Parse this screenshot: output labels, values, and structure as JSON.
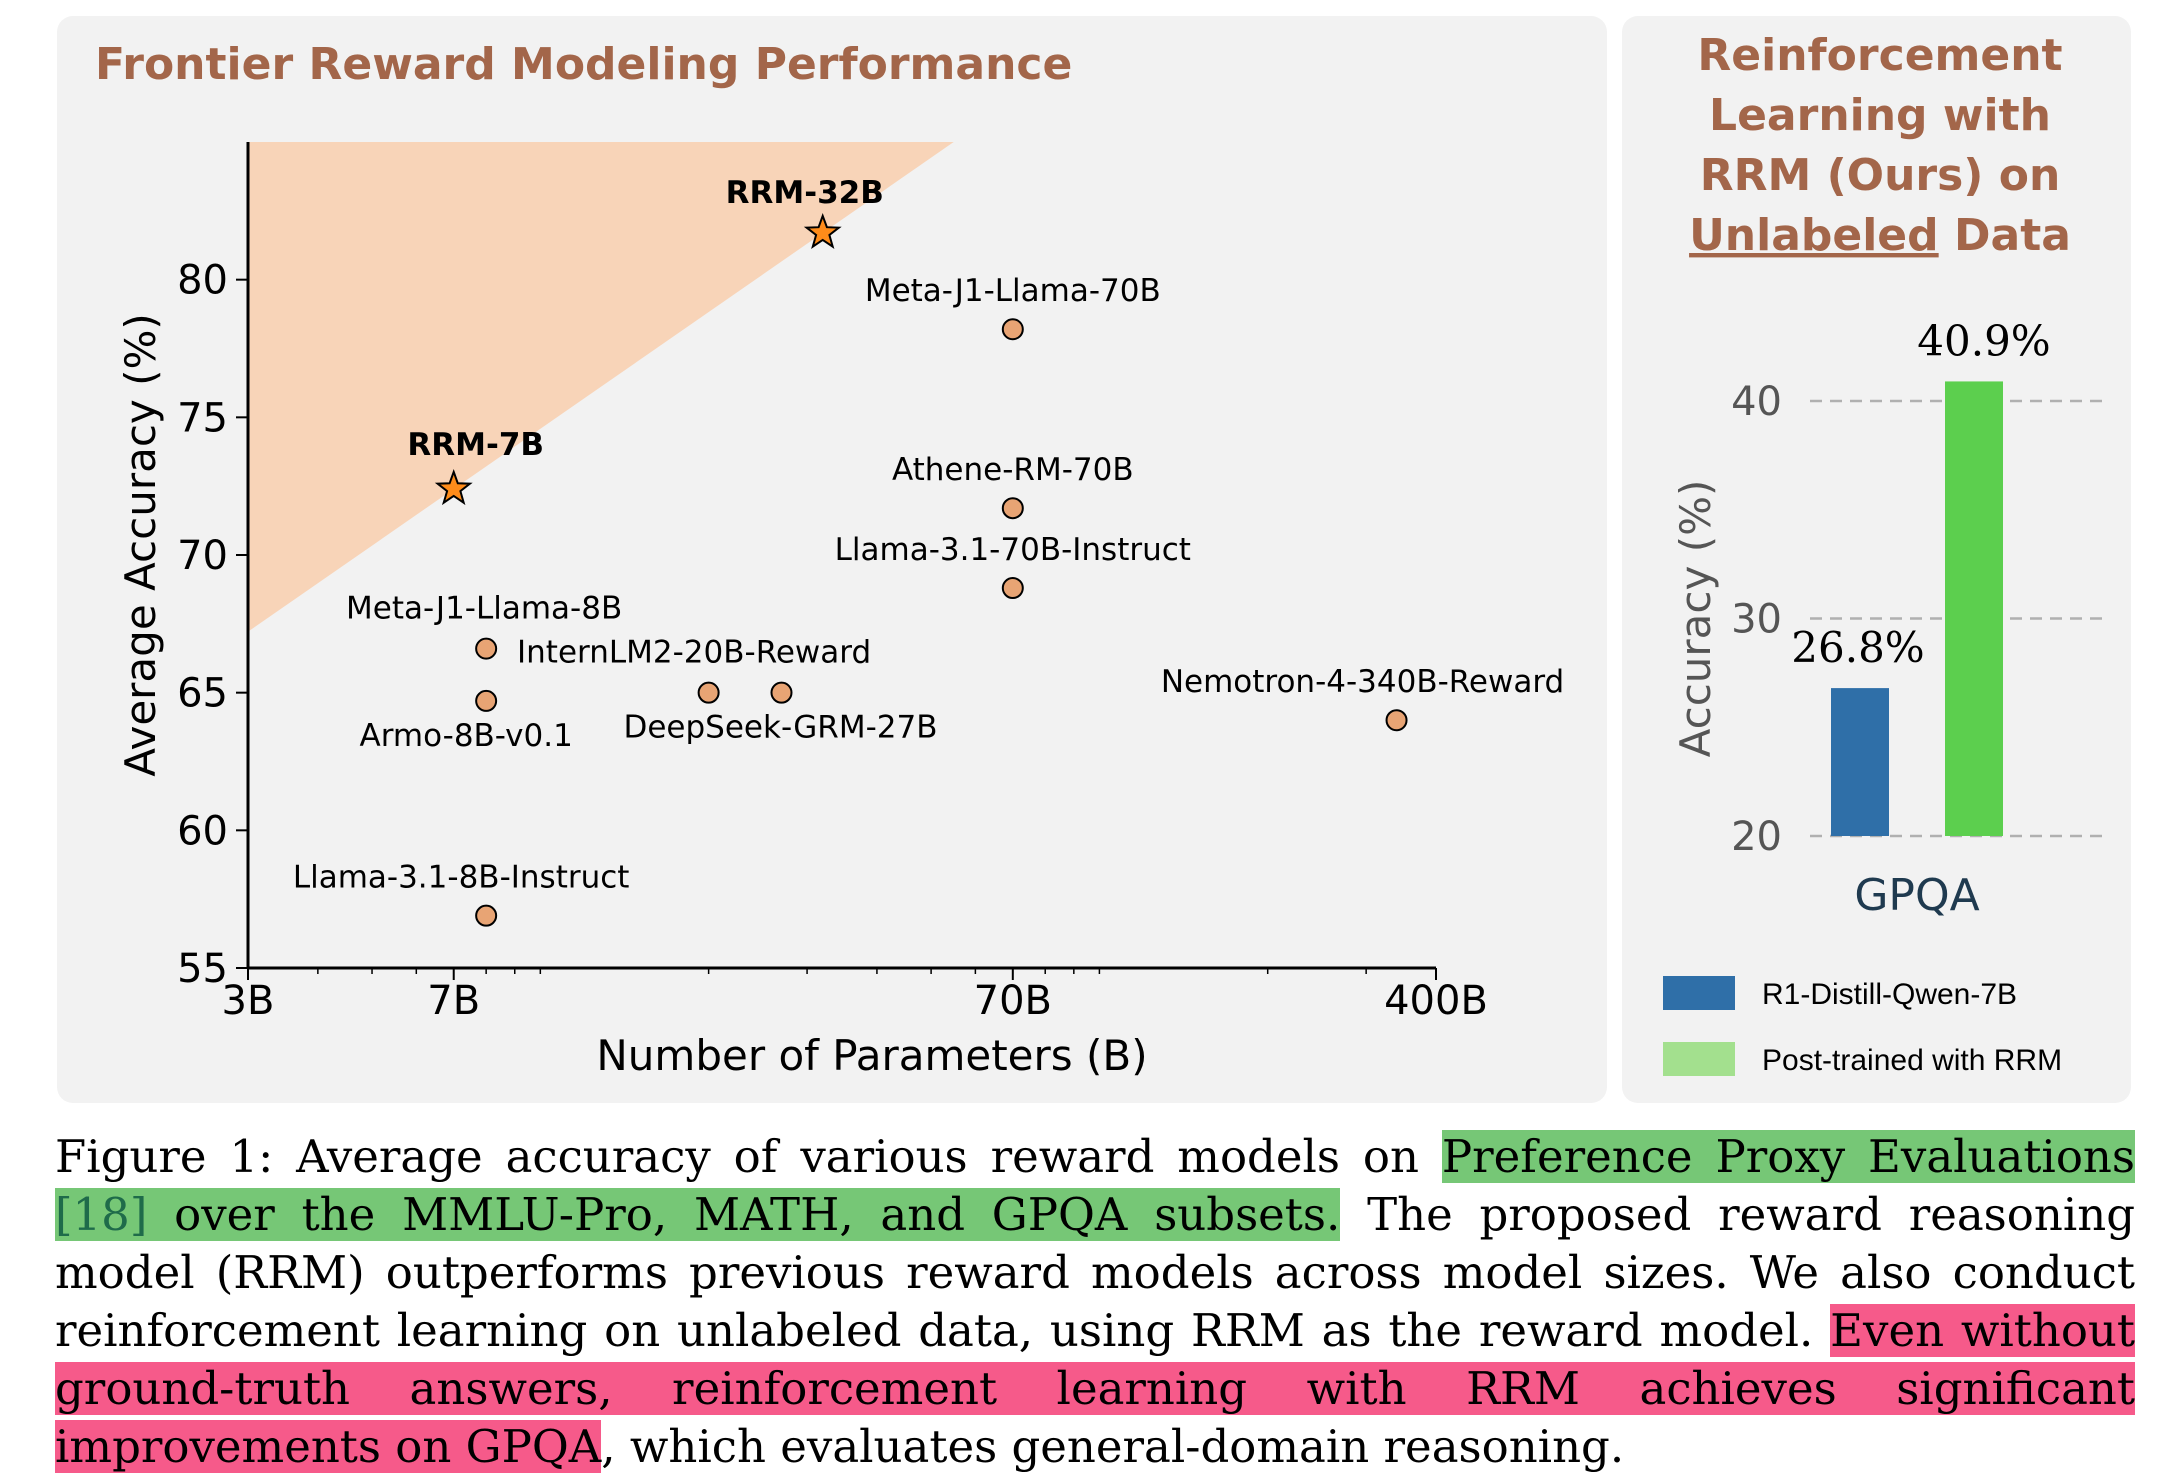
{
  "left_chart": {
    "panel_title": "Frontier Reward Modeling Performance",
    "chart_data": {
      "type": "scatter",
      "xlabel": "Number of Parameters (B)",
      "ylabel": "Average Accuracy (%)",
      "x_scale": "log",
      "x_ticks": [
        {
          "value": 3,
          "label": "3B"
        },
        {
          "value": 7,
          "label": "7B"
        },
        {
          "value": 70,
          "label": "70B"
        },
        {
          "value": 400,
          "label": "400B"
        }
      ],
      "y_ticks": [
        55,
        60,
        65,
        70,
        75,
        80
      ],
      "xlim": [
        3,
        400
      ],
      "ylim": [
        55,
        85
      ],
      "shaded_region": "frontier above RRM line",
      "colors": {
        "frontier_fill": "#f8d4b8",
        "point_fill": "#e8a474",
        "star_fill": "#ff8c1a",
        "title": "#a3664a"
      },
      "points": [
        {
          "name": "RRM-32B",
          "x": 32,
          "y": 81.7,
          "marker": "star",
          "bold": true
        },
        {
          "name": "RRM-7B",
          "x": 7,
          "y": 72.4,
          "marker": "star",
          "bold": true
        },
        {
          "name": "Meta-J1-Llama-70B",
          "x": 70,
          "y": 78.2,
          "marker": "circle"
        },
        {
          "name": "Athene-RM-70B",
          "x": 70,
          "y": 71.7,
          "marker": "circle"
        },
        {
          "name": "Llama-3.1-70B-Instruct",
          "x": 70,
          "y": 68.8,
          "marker": "circle"
        },
        {
          "name": "Meta-J1-Llama-8B",
          "x": 8,
          "y": 66.6,
          "marker": "circle"
        },
        {
          "name": "InternLM2-20B-Reward",
          "x": 20,
          "y": 65.0,
          "marker": "circle"
        },
        {
          "name": "Armo-8B-v0.1",
          "x": 8,
          "y": 64.7,
          "marker": "circle"
        },
        {
          "name": "DeepSeek-GRM-27B",
          "x": 27,
          "y": 65.0,
          "marker": "circle"
        },
        {
          "name": "Nemotron-4-340B-Reward",
          "x": 340,
          "y": 64.0,
          "marker": "circle"
        },
        {
          "name": "Llama-3.1-8B-Instruct",
          "x": 8,
          "y": 56.9,
          "marker": "circle"
        }
      ]
    }
  },
  "right_chart": {
    "title_lines": [
      "Reinforcement",
      "Learning with",
      "RRM (Ours) on"
    ],
    "title_underlined": "Unlabeled",
    "title_tail": " Data",
    "chart_data": {
      "type": "bar",
      "categories": [
        "GPQA"
      ],
      "ylabel": "Accuracy (%)",
      "y_ticks": [
        20,
        30,
        40
      ],
      "ylim": [
        20,
        42
      ],
      "grid": "horizontal dashed",
      "legend_position": "bottom",
      "series": [
        {
          "name": "R1-Distill-Qwen-7B",
          "values": [
            26.8
          ],
          "label": "26.8%",
          "color": "#2f6fa8",
          "legend_color": "#2f6fa8"
        },
        {
          "name": "Post-trained with RRM",
          "values": [
            40.9
          ],
          "label": "40.9%",
          "color": "#5ccf4e",
          "legend_color": "#a3e08e"
        }
      ]
    }
  },
  "caption": {
    "prefix": "Figure 1: Average accuracy of various reward models on ",
    "green_1": "Preference Proxy Evaluations ",
    "ref": "[18]",
    "green_2": " over the MMLU-Pro, MATH, and GPQA subsets.",
    "middle": " The proposed reward reasoning model (RRM) outperforms previous reward models across model sizes. We also conduct reinforcement learning on unlabeled data, using RRM as the reward model. ",
    "pink": "Even without ground-truth answers, reinforcement learning with RRM achieves significant improvements on GPQA",
    "suffix": ", which evaluates general-domain reasoning."
  }
}
